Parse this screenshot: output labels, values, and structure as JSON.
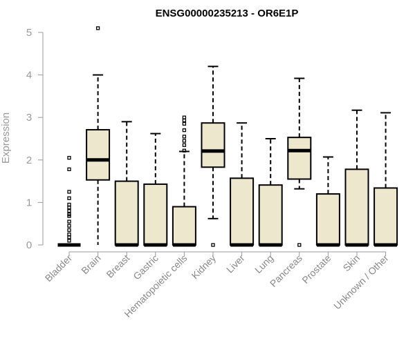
{
  "chart_data": {
    "type": "box",
    "title": "ENSG00000235213 - OR6E1P",
    "ylabel": "Expression",
    "xlabel": "",
    "ylim": [
      0,
      5
    ],
    "yticks": [
      0,
      1,
      2,
      3,
      4,
      5
    ],
    "grid": false,
    "colors": {
      "box_fill": "#ede7cd",
      "stroke": "#000000",
      "axis": "#999999"
    },
    "categories": [
      "Bladder",
      "Brain",
      "Breast",
      "Gastric",
      "Hematopoietic cells",
      "Kidney",
      "Liver",
      "Lung",
      "Pancreas",
      "Prostate",
      "Skin",
      "Unknown / Other"
    ],
    "boxes": [
      {
        "category": "Bladder",
        "q1": 0,
        "median": 0,
        "q3": 0,
        "whisker_low": 0,
        "whisker_high": 0,
        "outliers": [
          2.05,
          1.78,
          1.25,
          1.1,
          0.95,
          0.88,
          0.8,
          0.72,
          0.68,
          0.55,
          0.45,
          0.35,
          0.25,
          0.18,
          0.1
        ]
      },
      {
        "category": "Brain",
        "q1": 1.53,
        "median": 2.0,
        "q3": 2.71,
        "whisker_low": 0,
        "whisker_high": 4.0,
        "outliers": [
          5.1
        ]
      },
      {
        "category": "Breast",
        "q1": 0,
        "median": 0,
        "q3": 1.5,
        "whisker_low": 0,
        "whisker_high": 2.9,
        "outliers": []
      },
      {
        "category": "Gastric",
        "q1": 0,
        "median": 0,
        "q3": 1.43,
        "whisker_low": 0,
        "whisker_high": 2.62,
        "outliers": []
      },
      {
        "category": "Hematopoietic cells",
        "q1": 0,
        "median": 0,
        "q3": 0.9,
        "whisker_low": 0,
        "whisker_high": 2.2,
        "outliers": [
          3.0,
          2.93,
          2.85,
          2.7,
          2.55,
          2.45,
          2.35,
          2.22
        ]
      },
      {
        "category": "Kidney",
        "q1": 1.83,
        "median": 2.21,
        "q3": 2.87,
        "whisker_low": 0.62,
        "whisker_high": 4.2,
        "outliers": [
          0
        ]
      },
      {
        "category": "Liver",
        "q1": 0,
        "median": 0,
        "q3": 1.57,
        "whisker_low": 0,
        "whisker_high": 2.87,
        "outliers": []
      },
      {
        "category": "Lung",
        "q1": 0,
        "median": 0,
        "q3": 1.41,
        "whisker_low": 0,
        "whisker_high": 2.5,
        "outliers": []
      },
      {
        "category": "Pancreas",
        "q1": 1.55,
        "median": 2.22,
        "q3": 2.53,
        "whisker_low": 1.32,
        "whisker_high": 3.92,
        "outliers": [
          0
        ]
      },
      {
        "category": "Prostate",
        "q1": 0,
        "median": 0,
        "q3": 1.2,
        "whisker_low": 0,
        "whisker_high": 2.07,
        "outliers": []
      },
      {
        "category": "Skin",
        "q1": 0,
        "median": 0,
        "q3": 1.78,
        "whisker_low": 0,
        "whisker_high": 3.17,
        "outliers": []
      },
      {
        "category": "Unknown / Other",
        "q1": 0,
        "median": 0,
        "q3": 1.34,
        "whisker_low": 0,
        "whisker_high": 3.11,
        "outliers": []
      }
    ]
  }
}
